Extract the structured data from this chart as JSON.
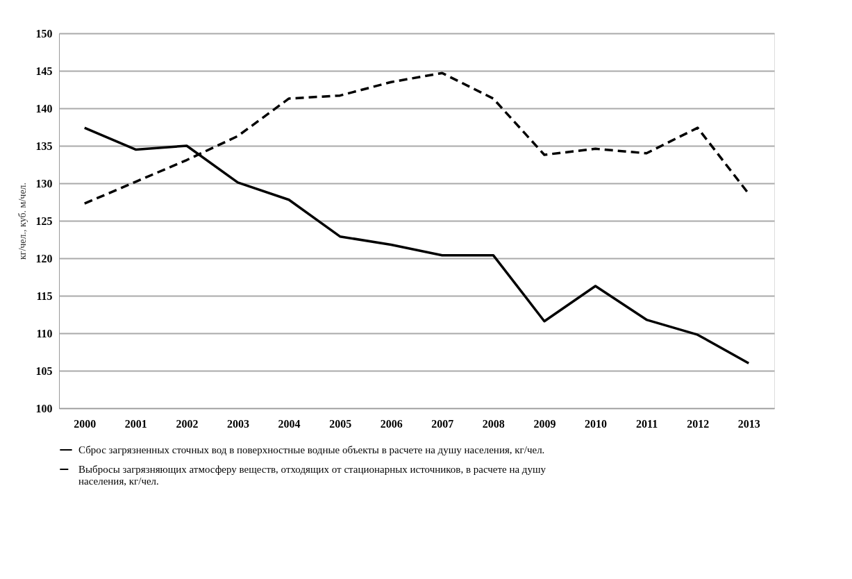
{
  "chart_data": {
    "type": "line",
    "ylabel": "кг/чел., куб. м/чел.",
    "categories": [
      "2000",
      "2001",
      "2002",
      "2003",
      "2004",
      "2005",
      "2006",
      "2007",
      "2008",
      "2009",
      "2010",
      "2011",
      "2012",
      "2013"
    ],
    "series": [
      {
        "name": "Сброс загрязненных сточных вод в поверхностные водные объекты в расчете на душу населения, кг/чел.",
        "color": "#000000",
        "line_style": "solid",
        "values": [
          137.4,
          134.5,
          135.0,
          130.1,
          127.8,
          122.9,
          121.8,
          120.4,
          120.4,
          111.6,
          116.3,
          111.8,
          109.8,
          106.0
        ]
      },
      {
        "name": "Выбросы загрязняющих атмосферу веществ, отходящих от стационарных источников, в расчете на душу населения, кг/чел.",
        "color": "#000000",
        "line_style": "dashed",
        "values": [
          127.3,
          130.2,
          133.1,
          136.3,
          141.3,
          141.7,
          143.5,
          144.7,
          141.3,
          133.8,
          134.6,
          134.0,
          137.4,
          128.6
        ]
      }
    ],
    "ylim": [
      100,
      150
    ],
    "yticks": [
      100,
      105,
      110,
      115,
      120,
      125,
      130,
      135,
      140,
      145,
      150
    ],
    "grid": "y",
    "legend": "bottom",
    "marker": "none"
  }
}
